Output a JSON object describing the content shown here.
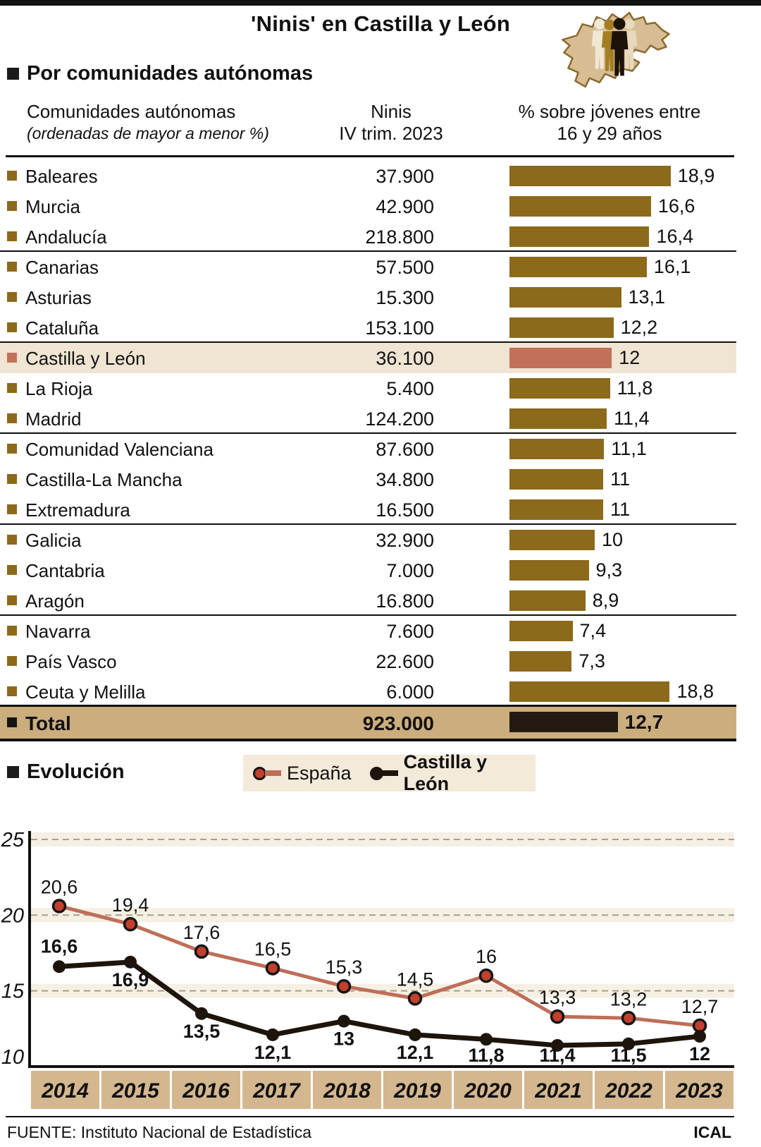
{
  "header": {
    "title": "'Ninis' en Castilla y León",
    "icon": "castilla-y-leon-map-with-people"
  },
  "colors": {
    "gold": "#8C691B",
    "salmon": "#C1705A",
    "espana_line": "#BE6E58",
    "marker_red": "#C2402C",
    "black_line": "#1D140C",
    "highlight_bg": "#F0E4D2",
    "total_bg": "#CBAD7E",
    "total_bar": "#231A12",
    "year_box": "#D4B78E",
    "legend_bg": "#F3EADA"
  },
  "table": {
    "heading": "Por comunidades autónomas",
    "col1_title": "Comunidades autónomas",
    "col1_sub": "(ordenadas de mayor a menor %)",
    "col2_title": "Ninis",
    "col2_sub": "IV trim. 2023",
    "col3_title": "% sobre jóvenes entre",
    "col3_sub": "16 y 29 años",
    "rows": [
      {
        "name": "Baleares",
        "ninis": "37.900",
        "pct": 18.9,
        "pct_label": "18,9"
      },
      {
        "name": "Murcia",
        "ninis": "42.900",
        "pct": 16.6,
        "pct_label": "16,6"
      },
      {
        "name": "Andalucía",
        "ninis": "218.800",
        "pct": 16.4,
        "pct_label": "16,4",
        "group_end": true
      },
      {
        "name": "Canarias",
        "ninis": "57.500",
        "pct": 16.1,
        "pct_label": "16,1"
      },
      {
        "name": "Asturias",
        "ninis": "15.300",
        "pct": 13.1,
        "pct_label": "13,1"
      },
      {
        "name": "Cataluña",
        "ninis": "153.100",
        "pct": 12.2,
        "pct_label": "12,2",
        "group_end": true
      },
      {
        "name": "Castilla y León",
        "ninis": "36.100",
        "pct": 12,
        "pct_label": "12",
        "highlight": true
      },
      {
        "name": "La Rioja",
        "ninis": "5.400",
        "pct": 11.8,
        "pct_label": "11,8"
      },
      {
        "name": "Madrid",
        "ninis": "124.200",
        "pct": 11.4,
        "pct_label": "11,4",
        "group_end": true
      },
      {
        "name": "Comunidad Valenciana",
        "ninis": "87.600",
        "pct": 11.1,
        "pct_label": "11,1"
      },
      {
        "name": "Castilla-La Mancha",
        "ninis": "34.800",
        "pct": 11,
        "pct_label": "11"
      },
      {
        "name": "Extremadura",
        "ninis": "16.500",
        "pct": 11,
        "pct_label": "11",
        "group_end": true
      },
      {
        "name": "Galicia",
        "ninis": "32.900",
        "pct": 10,
        "pct_label": "10"
      },
      {
        "name": "Cantabria",
        "ninis": "7.000",
        "pct": 9.3,
        "pct_label": "9,3"
      },
      {
        "name": "Aragón",
        "ninis": "16.800",
        "pct": 8.9,
        "pct_label": "8,9",
        "group_end": true
      },
      {
        "name": "Navarra",
        "ninis": "7.600",
        "pct": 7.4,
        "pct_label": "7,4"
      },
      {
        "name": "País Vasco",
        "ninis": "22.600",
        "pct": 7.3,
        "pct_label": "7,3"
      },
      {
        "name": "Ceuta y Melilla",
        "ninis": "6.000",
        "pct": 18.8,
        "pct_label": "18,8"
      }
    ],
    "total": {
      "name": "Total",
      "ninis": "923.000",
      "pct": 12.7,
      "pct_label": "12,7"
    }
  },
  "evolution": {
    "heading": "Evolución",
    "legend": [
      {
        "name": "España"
      },
      {
        "name": "Castilla y León"
      }
    ]
  },
  "chart_data": [
    {
      "type": "bar",
      "orientation": "horizontal",
      "title": "Ninis por comunidades autónomas, IV trim. 2023",
      "categories": [
        "Baleares",
        "Murcia",
        "Andalucía",
        "Canarias",
        "Asturias",
        "Cataluña",
        "Castilla y León",
        "La Rioja",
        "Madrid",
        "Comunidad Valenciana",
        "Castilla-La Mancha",
        "Extremadura",
        "Galicia",
        "Cantabria",
        "Aragón",
        "Navarra",
        "País Vasco",
        "Ceuta y Melilla"
      ],
      "series": [
        {
          "name": "Ninis IV trim. 2023",
          "values": [
            37900,
            42900,
            218800,
            57500,
            15300,
            153100,
            36100,
            5400,
            124200,
            87600,
            34800,
            16500,
            32900,
            7000,
            16800,
            7600,
            22600,
            6000
          ]
        },
        {
          "name": "% sobre jóvenes entre 16 y 29 años",
          "values": [
            18.9,
            16.6,
            16.4,
            16.1,
            13.1,
            12.2,
            12,
            11.8,
            11.4,
            11.1,
            11,
            11,
            10,
            9.3,
            8.9,
            7.4,
            7.3,
            18.8
          ]
        }
      ],
      "total": {
        "ninis": 923000,
        "pct": 12.7
      },
      "xlim": [
        0,
        19
      ],
      "highlight_category": "Castilla y León"
    },
    {
      "type": "line",
      "title": "Evolución",
      "x": [
        2014,
        2015,
        2016,
        2017,
        2018,
        2019,
        2020,
        2021,
        2022,
        2023
      ],
      "series": [
        {
          "name": "España",
          "color": "#BE6E58",
          "values": [
            20.6,
            19.4,
            17.6,
            16.5,
            15.3,
            14.5,
            16,
            13.3,
            13.2,
            12.7
          ]
        },
        {
          "name": "Castilla y León",
          "color": "#1D140C",
          "values": [
            16.6,
            16.9,
            13.5,
            12.1,
            13,
            12.1,
            11.8,
            11.4,
            11.5,
            12
          ]
        }
      ],
      "ylim": [
        10,
        25
      ],
      "yticks": [
        10,
        15,
        20,
        25
      ],
      "grid": "dashed-horizontal",
      "legend_position": "top"
    }
  ],
  "footer": {
    "source": "FUENTE: Instituto Nacional de Estadística",
    "credit": "ICAL"
  }
}
